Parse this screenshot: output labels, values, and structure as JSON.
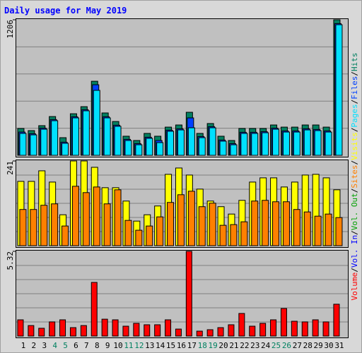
{
  "chart_data": {
    "type": "bar",
    "title": "Daily usage for May 2019",
    "categories": [
      "1",
      "2",
      "3",
      "4",
      "5",
      "6",
      "7",
      "8",
      "9",
      "10",
      "11",
      "12",
      "13",
      "14",
      "15",
      "16",
      "17",
      "18",
      "19",
      "20",
      "21",
      "22",
      "23",
      "24",
      "25",
      "26",
      "27",
      "28",
      "29",
      "30",
      "31"
    ],
    "highlight_categories": [
      "4",
      "5",
      "11",
      "12",
      "18",
      "19",
      "25",
      "26"
    ],
    "highlight_color": "#008060",
    "legend_separator": "/",
    "panels": [
      {
        "ylim": [
          0,
          1206
        ],
        "yticks": [
          1206
        ],
        "grid_divisions": 5,
        "series": [
          {
            "name": "Hits",
            "color": "#008060",
            "values": [
              239,
              220,
              264,
              345,
              157,
              370,
              433,
              659,
              377,
              301,
              170,
              132,
              195,
              170,
              251,
              270,
              383,
              195,
              283,
              170,
              132,
              239,
              239,
              239,
              270,
              251,
              251,
              270,
              270,
              251,
              1206
            ]
          },
          {
            "name": "Files",
            "color": "#0040ff",
            "values": [
              207,
              192,
              242,
              318,
              117,
              343,
              406,
              628,
              343,
              268,
              142,
              104,
              161,
              132,
              224,
              236,
              333,
              167,
              255,
              136,
              104,
              205,
              205,
              211,
              242,
              217,
              217,
              236,
              230,
              217,
              1172
            ]
          },
          {
            "name": "Pages",
            "color": "#00e0ff",
            "values": [
              195,
              182,
              232,
              308,
              107,
              333,
              396,
              578,
              333,
              258,
              132,
              94,
              151,
              113,
              214,
              226,
              245,
              157,
              245,
              126,
              94,
              195,
              195,
              201,
              232,
              207,
              207,
              226,
              220,
              207,
              1162
            ]
          }
        ]
      },
      {
        "ylim": [
          0,
          241
        ],
        "yticks": [
          241
        ],
        "grid_divisions": 6,
        "series": [
          {
            "name": "Visits",
            "color": "#ffff00",
            "values": [
              183,
              183,
              213,
              181,
              88,
              241,
              241,
              223,
              165,
              165,
              127,
              70,
              88,
              113,
              203,
              221,
              201,
              161,
              127,
              111,
              90,
              129,
              181,
              193,
              193,
              167,
              181,
              201,
              203,
              193,
              159
            ]
          },
          {
            "name": "Sites",
            "color": "#ff8000",
            "values": [
              103,
              103,
              115,
              119,
              56,
              169,
              151,
              167,
              119,
              159,
              72,
              44,
              56,
              82,
              123,
              145,
              155,
              111,
              121,
              58,
              60,
              68,
              127,
              129,
              125,
              125,
              103,
              96,
              84,
              90,
              80
            ]
          }
        ]
      },
      {
        "ylim": [
          0,
          5.32
        ],
        "yticks": [
          5.32
        ],
        "grid_divisions": 6,
        "legend_only": [
          {
            "name": "Vol. Out",
            "color": "#00a000"
          },
          {
            "name": "Vol. In",
            "color": "#0000ff"
          }
        ],
        "series": [
          {
            "name": "Volume",
            "color": "#ff0000",
            "values": [
              1.02,
              0.66,
              0.49,
              0.89,
              1.02,
              0.53,
              0.66,
              3.37,
              1.06,
              1.02,
              0.62,
              0.8,
              0.71,
              0.71,
              1.02,
              0.44,
              5.32,
              0.31,
              0.4,
              0.53,
              0.71,
              1.42,
              0.62,
              0.8,
              1.02,
              1.73,
              0.93,
              0.89,
              1.02,
              0.89,
              2.0
            ]
          }
        ]
      }
    ]
  }
}
